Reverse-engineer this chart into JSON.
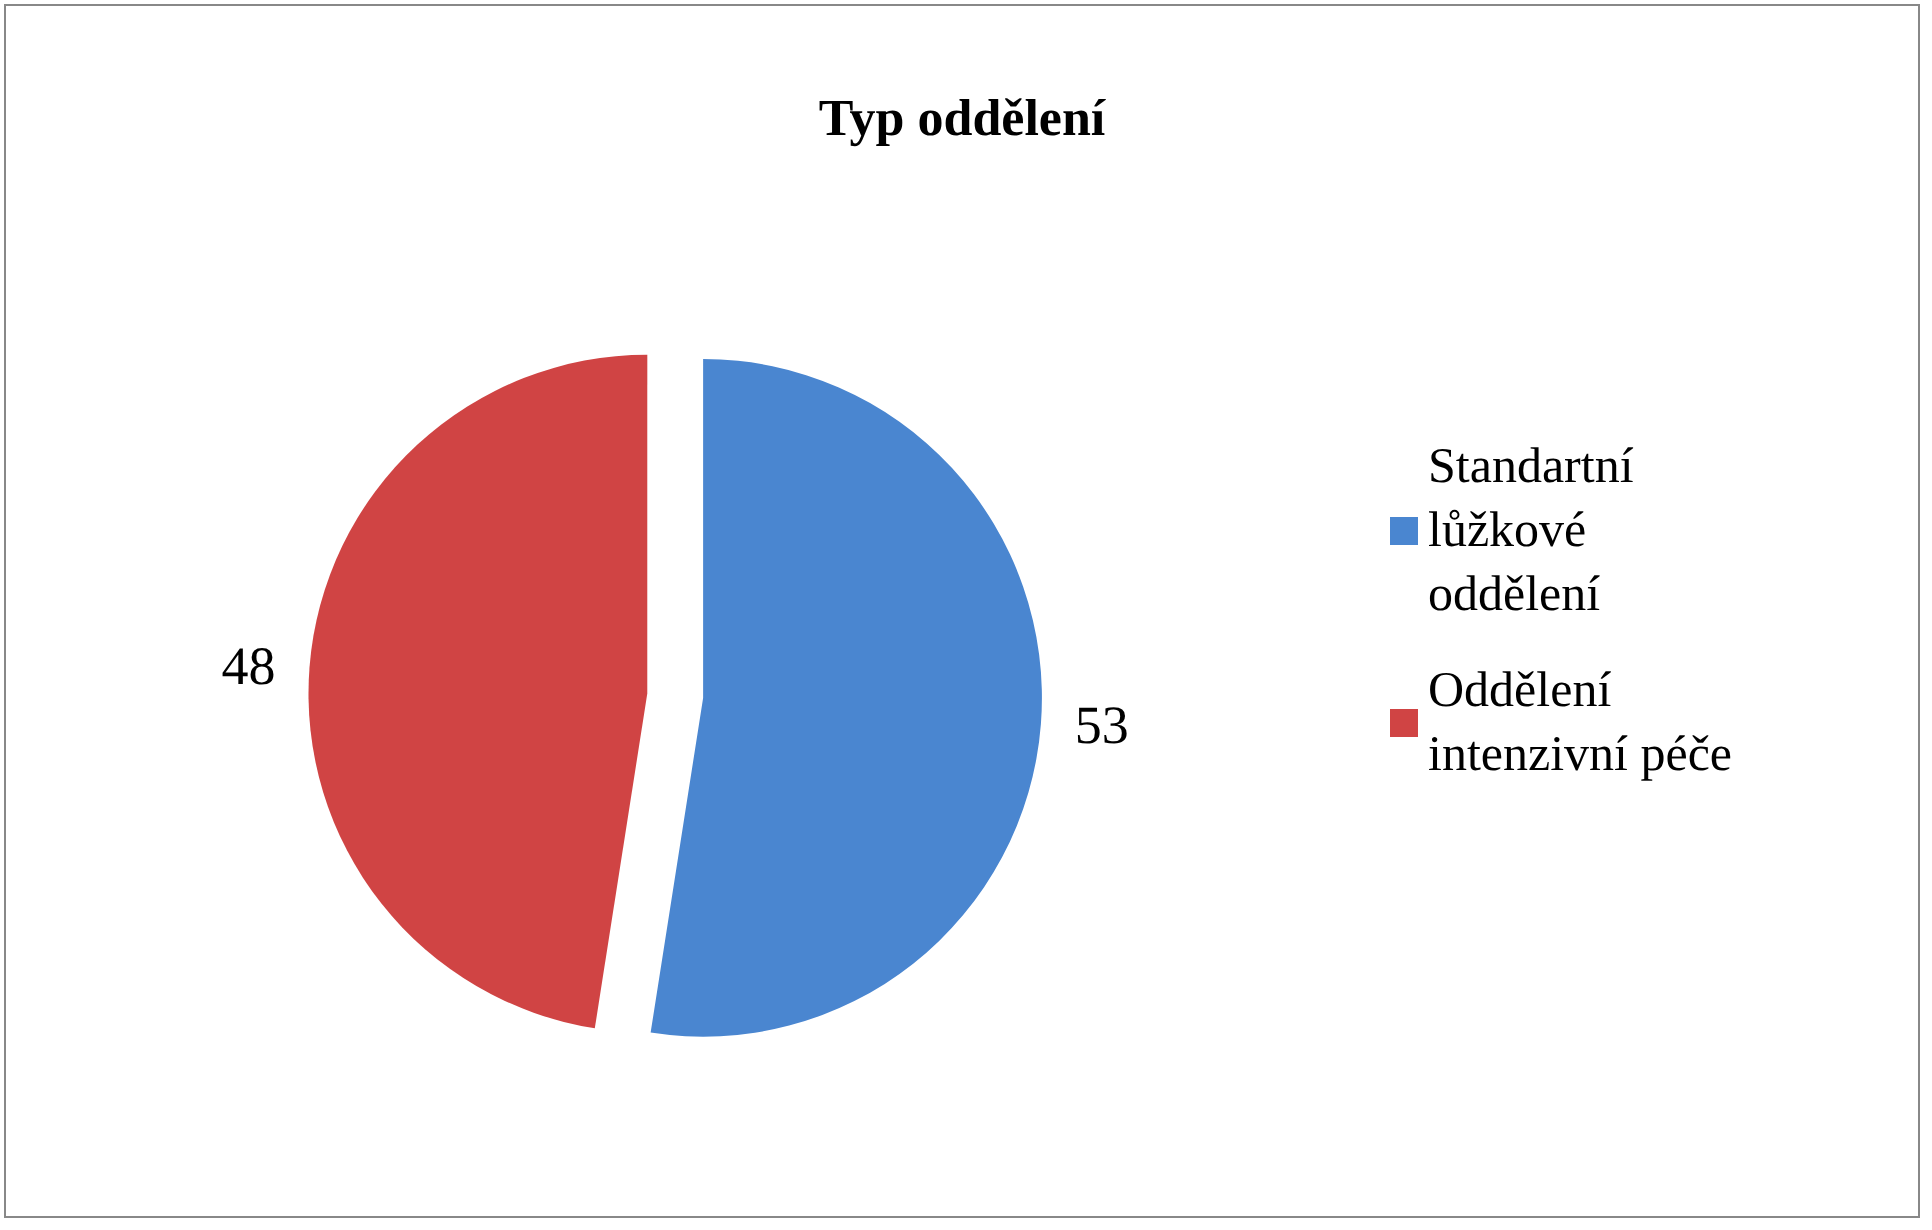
{
  "chart_data": {
    "type": "pie",
    "title": "Typ oddělení",
    "categories": [
      "Standartní lůžkové oddělení",
      "Oddělení intenzivní péče"
    ],
    "values": [
      53,
      48
    ],
    "colors": [
      "#4a86d0",
      "#d04444"
    ],
    "data_labels": true,
    "legend": "right"
  }
}
